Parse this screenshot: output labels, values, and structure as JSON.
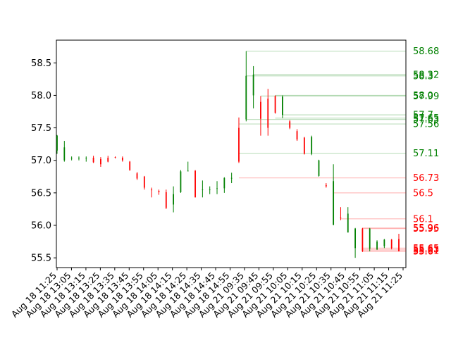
{
  "chart_data": {
    "type": "candlestick",
    "title": "",
    "xlabel": "",
    "ylabel": "",
    "ylim": [
      55.35,
      58.85
    ],
    "y_ticks": [
      "55.5",
      "56.0",
      "56.5",
      "57.0",
      "57.5",
      "58.0",
      "58.5"
    ],
    "x_tick_labels": [
      "Aug 18 11:25",
      "Aug 18 13:05",
      "Aug 18 13:15",
      "Aug 18 13:25",
      "Aug 18 13:35",
      "Aug 18 13:45",
      "Aug 18 13:55",
      "Aug 18 14:05",
      "Aug 18 14:15",
      "Aug 18 14:25",
      "Aug 18 14:35",
      "Aug 18 14:45",
      "Aug 18 14:55",
      "Aug 21 09:35",
      "Aug 21 09:45",
      "Aug 21 09:55",
      "Aug 21 10:05",
      "Aug 21 10:15",
      "Aug 21 10:25",
      "Aug 21 10:35",
      "Aug 21 10:45",
      "Aug 21 10:55",
      "Aug 21 11:05",
      "Aug 21 11:15",
      "Aug 21 11:25"
    ],
    "grid": false,
    "up_color": "#008000",
    "down_color": "#ff0000",
    "candles": [
      {
        "open": 57.15,
        "close": 57.38,
        "high": 57.39,
        "low": 57.1
      },
      {
        "open": 57.0,
        "close": 57.2,
        "high": 57.3,
        "low": 56.98
      },
      {
        "open": 57.04,
        "close": 57.04,
        "high": 57.06,
        "low": 57.0
      },
      {
        "open": 57.04,
        "close": 57.04,
        "high": 57.06,
        "low": 57.0
      },
      {
        "open": 57.04,
        "close": 57.04,
        "high": 57.06,
        "low": 56.98
      },
      {
        "open": 57.04,
        "close": 56.97,
        "high": 57.07,
        "low": 56.96
      },
      {
        "open": 57.02,
        "close": 56.94,
        "high": 57.05,
        "low": 56.9
      },
      {
        "open": 57.04,
        "close": 56.98,
        "high": 57.07,
        "low": 56.97
      },
      {
        "open": 57.05,
        "close": 57.04,
        "high": 57.06,
        "low": 57.03
      },
      {
        "open": 57.04,
        "close": 57.0,
        "high": 57.06,
        "low": 56.98
      },
      {
        "open": 56.98,
        "close": 56.85,
        "high": 56.99,
        "low": 56.84
      },
      {
        "open": 56.8,
        "close": 56.72,
        "high": 56.82,
        "low": 56.7
      },
      {
        "open": 56.75,
        "close": 56.58,
        "high": 56.76,
        "low": 56.55
      },
      {
        "open": 56.55,
        "close": 56.54,
        "high": 56.58,
        "low": 56.43
      },
      {
        "open": 56.53,
        "close": 56.51,
        "high": 56.55,
        "low": 56.47
      },
      {
        "open": 56.51,
        "close": 56.27,
        "high": 56.55,
        "low": 56.25
      },
      {
        "open": 56.32,
        "close": 56.48,
        "high": 56.6,
        "low": 56.2
      },
      {
        "open": 56.51,
        "close": 56.83,
        "high": 56.85,
        "low": 56.5
      },
      {
        "open": 56.84,
        "close": 56.84,
        "high": 56.98,
        "low": 56.83
      },
      {
        "open": 56.84,
        "close": 56.43,
        "high": 56.85,
        "low": 56.43
      },
      {
        "open": 56.55,
        "close": 56.55,
        "high": 56.69,
        "low": 56.43
      },
      {
        "open": 56.55,
        "close": 56.55,
        "high": 56.6,
        "low": 56.48
      },
      {
        "open": 56.57,
        "close": 56.57,
        "high": 56.68,
        "low": 56.48
      },
      {
        "open": 56.57,
        "close": 56.73,
        "high": 56.74,
        "low": 56.5
      },
      {
        "open": 56.72,
        "close": 56.73,
        "high": 56.81,
        "low": 56.65
      },
      {
        "open": 57.5,
        "close": 56.98,
        "high": 57.66,
        "low": 56.96
      },
      {
        "open": 57.63,
        "close": 58.3,
        "high": 58.68,
        "low": 57.6
      },
      {
        "open": 58.0,
        "close": 58.32,
        "high": 58.45,
        "low": 57.8
      },
      {
        "open": 57.9,
        "close": 57.64,
        "high": 57.99,
        "low": 57.38
      },
      {
        "open": 57.95,
        "close": 57.5,
        "high": 58.1,
        "low": 57.38
      },
      {
        "open": 57.99,
        "close": 57.73,
        "high": 58.0,
        "low": 57.72
      },
      {
        "open": 57.7,
        "close": 57.98,
        "high": 58.0,
        "low": 57.65
      },
      {
        "open": 57.6,
        "close": 57.5,
        "high": 57.62,
        "low": 57.48
      },
      {
        "open": 57.45,
        "close": 57.32,
        "high": 57.48,
        "low": 57.3
      },
      {
        "open": 57.35,
        "close": 57.1,
        "high": 57.36,
        "low": 57.09
      },
      {
        "open": 57.1,
        "close": 57.36,
        "high": 57.38,
        "low": 57.08
      },
      {
        "open": 56.76,
        "close": 57.0,
        "high": 57.01,
        "low": 56.75
      },
      {
        "open": 56.62,
        "close": 56.6,
        "high": 56.65,
        "low": 56.58
      },
      {
        "open": 56.01,
        "close": 56.68,
        "high": 56.94,
        "low": 56.0
      },
      {
        "open": 56.12,
        "close": 56.11,
        "high": 56.28,
        "low": 56.08
      },
      {
        "open": 55.89,
        "close": 56.18,
        "high": 56.28,
        "low": 55.89
      },
      {
        "open": 55.65,
        "close": 55.95,
        "high": 55.96,
        "low": 55.5
      },
      {
        "open": 55.95,
        "close": 55.6,
        "high": 55.96,
        "low": 55.59
      },
      {
        "open": 55.64,
        "close": 55.95,
        "high": 55.96,
        "low": 55.6
      },
      {
        "open": 55.63,
        "close": 55.75,
        "high": 55.77,
        "low": 55.62
      },
      {
        "open": 55.68,
        "close": 55.78,
        "high": 55.79,
        "low": 55.65
      },
      {
        "open": 55.78,
        "close": 55.65,
        "high": 55.79,
        "low": 55.63
      },
      {
        "open": 55.79,
        "close": 55.6,
        "high": 55.87,
        "low": 55.6
      }
    ],
    "horizontal_levels": [
      {
        "value": 58.68,
        "label": "58.68",
        "color": "#008000",
        "from_index": 26
      },
      {
        "value": 58.32,
        "label": "58.32",
        "color": "#008000",
        "from_index": 27
      },
      {
        "value": 58.3,
        "label": "58.3",
        "color": "#008000",
        "from_index": 26
      },
      {
        "value": 58.0,
        "label": "58.0",
        "color": "#008000",
        "from_index": 30
      },
      {
        "value": 57.99,
        "label": "57.99",
        "color": "#008000",
        "from_index": 28
      },
      {
        "value": 57.7,
        "label": "57.7",
        "color": "#008000",
        "from_index": 31
      },
      {
        "value": 57.65,
        "label": "57.65",
        "color": "#008000",
        "from_index": 30
      },
      {
        "value": 57.63,
        "label": "57.63",
        "color": "#008000",
        "from_index": 26
      },
      {
        "value": 57.56,
        "label": "57.56",
        "color": "#008000",
        "from_index": 25
      },
      {
        "value": 57.11,
        "label": "57.11",
        "color": "#008000",
        "from_index": 25
      },
      {
        "value": 56.73,
        "label": "56.73",
        "color": "#ff0000",
        "from_index": 25
      },
      {
        "value": 56.5,
        "label": "56.5",
        "color": "#ff0000",
        "from_index": 38
      },
      {
        "value": 56.1,
        "label": "56.1",
        "color": "#ff0000",
        "from_index": 39
      },
      {
        "value": 55.96,
        "label": "55.96",
        "color": "#ff0000",
        "from_index": 42
      },
      {
        "value": 55.95,
        "label": "55.95",
        "color": "#ff0000",
        "from_index": 42
      },
      {
        "value": 55.65,
        "label": "55.65",
        "color": "#ff0000",
        "from_index": 42
      },
      {
        "value": 55.63,
        "label": "55.63",
        "color": "#ff0000",
        "from_index": 42
      },
      {
        "value": 55.61,
        "label": "55.61",
        "color": "#ff0000",
        "from_index": 42
      },
      {
        "value": 55.6,
        "label": "55.6",
        "color": "#ff0000",
        "from_index": 42
      }
    ]
  }
}
